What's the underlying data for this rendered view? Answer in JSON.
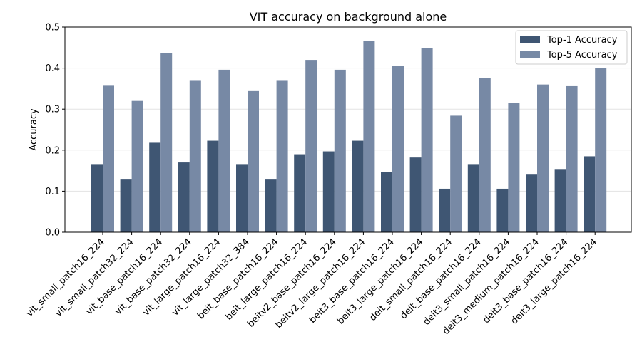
{
  "chart_data": {
    "type": "bar",
    "title": "VIT accuracy on background alone",
    "xlabel": "",
    "ylabel": "Accuracy",
    "ylim": [
      0,
      0.5
    ],
    "yticks": [
      "0.0",
      "0.1",
      "0.2",
      "0.3",
      "0.4",
      "0.5"
    ],
    "grid": "horizontal",
    "legend_position": "top-right",
    "categories": [
      "vit_small_patch16_224",
      "vit_small_patch32_224",
      "vit_base_patch16_224",
      "vit_base_patch32_224",
      "vit_large_patch16_224",
      "vit_large_patch32_384",
      "beit_base_patch16_224",
      "beit_large_patch16_224",
      "beitv2_base_patch16_224",
      "beitv2_large_patch16_224",
      "beit3_base_patch16_224",
      "beit3_large_patch16_224",
      "deit_small_patch16_224",
      "deit_base_patch16_224",
      "deit3_small_patch16_224",
      "deit3_medium_patch16_224",
      "deit3_base_patch16_224",
      "deit3_large_patch16_224"
    ],
    "series": [
      {
        "name": "Top-1 Accuracy",
        "color": "#3f5673",
        "values": [
          0.166,
          0.13,
          0.218,
          0.17,
          0.223,
          0.166,
          0.13,
          0.19,
          0.197,
          0.223,
          0.146,
          0.182,
          0.106,
          0.166,
          0.106,
          0.142,
          0.154,
          0.185
        ]
      },
      {
        "name": "Top-5 Accuracy",
        "color": "#7789a5",
        "values": [
          0.357,
          0.32,
          0.436,
          0.369,
          0.396,
          0.344,
          0.369,
          0.42,
          0.396,
          0.466,
          0.405,
          0.448,
          0.284,
          0.375,
          0.315,
          0.36,
          0.356,
          0.4
        ]
      }
    ]
  }
}
